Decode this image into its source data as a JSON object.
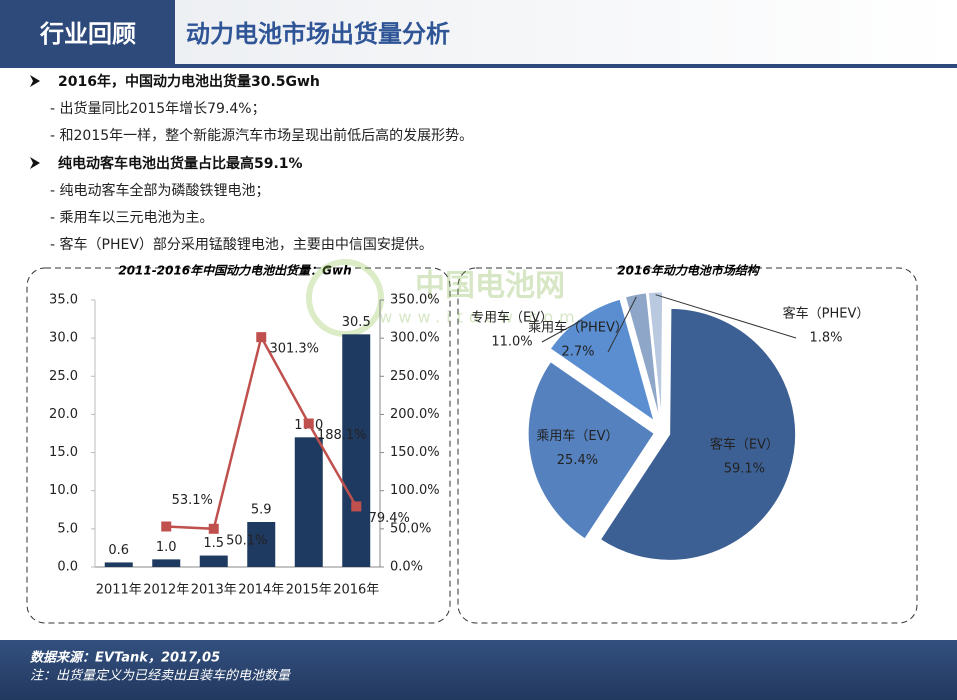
{
  "header": {
    "section": "行业回顾",
    "title": "动力电池市场出货量分析"
  },
  "bullets": [
    {
      "text": "2016年，中国动力电池出货量30.5Gwh",
      "items": [
        "- 出货量同比2015年增长79.4%；",
        "- 和2015年一样，整个新能源汽车市场呈现出前低后高的发展形势。"
      ]
    },
    {
      "text": "纯电动客车电池出货量占比最高59.1%",
      "items": [
        "- 纯电动客车全部为磷酸铁锂电池；",
        "- 乘用车以三元电池为主。",
        "- 客车（PHEV）部分采用锰酸锂电池，主要由中信国安提供。"
      ]
    }
  ],
  "watermark": {
    "name": "中国电池网",
    "url": "www.itdcw.com"
  },
  "chart_data": [
    {
      "type": "combo",
      "title": "2011-2016年中国动力电池出货量：Gwh",
      "categories": [
        "2011年",
        "2012年",
        "2013年",
        "2014年",
        "2015年",
        "2016年"
      ],
      "series": [
        {
          "type": "bar",
          "color": "#1f3a60",
          "values": [
            0.6,
            1.0,
            1.5,
            5.9,
            17.0,
            30.5
          ],
          "value_labels": [
            "0.6",
            "1.0",
            "1.5",
            "5.9",
            "17.0",
            "30.5"
          ]
        },
        {
          "type": "line",
          "axis": "y2",
          "color": "#c0504d",
          "values": [
            null,
            53.1,
            50.1,
            301.3,
            188.1,
            79.4
          ],
          "value_labels": [
            null,
            "53.1%",
            "50.1%",
            "301.3%",
            "188.1%",
            "79.4%"
          ]
        }
      ],
      "ylim": [
        0,
        35
      ],
      "yticks": [
        {
          "value": 0,
          "label": "0.0"
        },
        {
          "value": 5,
          "label": "5.0"
        },
        {
          "value": 10,
          "label": "10.0"
        },
        {
          "value": 15,
          "label": "15.0"
        },
        {
          "value": 20,
          "label": "20.0"
        },
        {
          "value": 25,
          "label": "25.0"
        },
        {
          "value": 30,
          "label": "30.0"
        },
        {
          "value": 35,
          "label": "35.0"
        }
      ],
      "y2lim": [
        0,
        350
      ],
      "y2ticks": [
        {
          "value": 0,
          "label": "0.0%"
        },
        {
          "value": 50,
          "label": "50.0%"
        },
        {
          "value": 100,
          "label": "100.0%"
        },
        {
          "value": 150,
          "label": "150.0%"
        },
        {
          "value": 200,
          "label": "200.0%"
        },
        {
          "value": 250,
          "label": "250.0%"
        },
        {
          "value": 300,
          "label": "300.0%"
        },
        {
          "value": 350,
          "label": "350.0%"
        }
      ],
      "grid": false
    },
    {
      "type": "pie",
      "title": "2016年动力电池市场结构",
      "categories": [
        "客车（EV）",
        "乘用车（EV）",
        "专用车（EV）",
        "乘用车（PHEV）",
        "客车（PHEV）"
      ],
      "values": [
        59.1,
        25.4,
        11.0,
        2.7,
        1.8
      ],
      "value_labels": [
        "59.1%",
        "25.4%",
        "11.0%",
        "2.7%",
        "1.8%"
      ],
      "colors": [
        "#3d6094",
        "#5582bf",
        "#5a8ed0",
        "#8ea6c8",
        "#b9c9e0"
      ]
    }
  ],
  "footer": {
    "source": "数据来源：EVTank，2017,05",
    "note": "注：出货量定义为已经卖出且装车的电池数量"
  }
}
